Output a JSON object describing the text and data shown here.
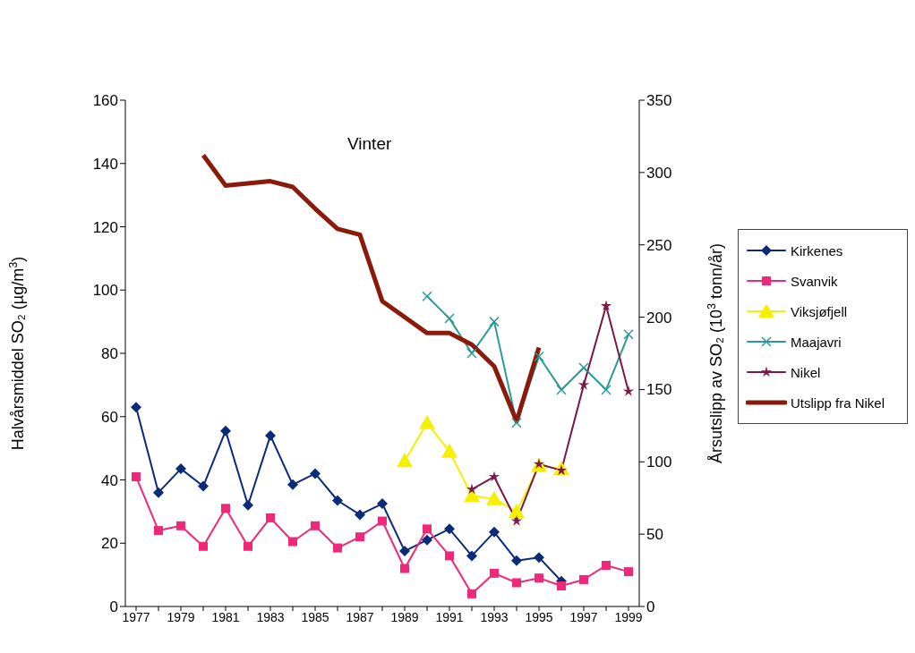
{
  "chart_data": {
    "type": "line",
    "title": "Vinter",
    "categories": [
      "1977",
      null,
      "1979",
      null,
      "1981",
      null,
      "1983",
      null,
      "1985",
      null,
      "1987",
      null,
      "1989",
      null,
      "1991",
      null,
      "1993",
      null,
      "1995",
      null,
      "1997",
      null,
      "1999"
    ],
    "ylabel": "Halvårsmiddel SO₂ (µg/m$^{3}$)",
    "y2label": "Årsutslipp av SO₂ (10$^{3}$ tonn/år)",
    "ylim": [
      0,
      160
    ],
    "yticks": [
      0,
      20,
      40,
      60,
      80,
      100,
      120,
      140,
      160
    ],
    "y2lim": [
      0,
      350
    ],
    "y2ticks": [
      0,
      50,
      100,
      150,
      200,
      250,
      300,
      350
    ],
    "grid": false,
    "legend": "right",
    "series": [
      {
        "name": "Kirkenes",
        "color": "#0a2a7a",
        "marker": "diamond",
        "values": [
          63,
          36,
          43.5,
          38,
          55.5,
          32,
          54,
          38.5,
          42,
          33.5,
          29,
          32.5,
          17.5,
          21,
          24.5,
          16,
          23.5,
          14.5,
          15.5,
          8,
          null,
          null,
          null
        ]
      },
      {
        "name": "Svanvik",
        "color": "#f0287a",
        "marker": "square",
        "values": [
          41,
          24,
          25.5,
          19,
          31,
          19,
          28,
          20.5,
          25.5,
          18.5,
          22,
          27,
          12,
          24.5,
          16,
          4,
          10.5,
          7.5,
          9,
          6.5,
          8.5,
          13,
          11
        ]
      },
      {
        "name": "Viksjøfjell",
        "color": "#f5f000",
        "marker": "triangle",
        "values": [
          null,
          null,
          null,
          null,
          null,
          null,
          null,
          null,
          null,
          null,
          null,
          null,
          46,
          58,
          49,
          35,
          34,
          30,
          44.5,
          43.5,
          null,
          null,
          null
        ]
      },
      {
        "name": "Maajavri",
        "color": "#2a9a9a",
        "marker": "cross",
        "values": [
          null,
          null,
          null,
          null,
          null,
          null,
          null,
          null,
          null,
          null,
          null,
          null,
          null,
          98,
          91,
          80,
          90,
          58,
          79,
          68.5,
          75.5,
          68.5,
          86
        ]
      },
      {
        "name": "Nikel",
        "color": "#7a1a4a",
        "marker": "star",
        "values": [
          null,
          null,
          null,
          null,
          null,
          null,
          null,
          null,
          null,
          null,
          null,
          null,
          null,
          null,
          null,
          37,
          41,
          27,
          45,
          43,
          70,
          95,
          68
        ]
      },
      {
        "name": "Utslipp fra Nikel",
        "color": "#8a1a0a",
        "marker": "none",
        "axis": "y2",
        "values": [
          null,
          null,
          null,
          312,
          291,
          292.5,
          294,
          290,
          275,
          261,
          257,
          211,
          200,
          189,
          189,
          181,
          166,
          128,
          179,
          null,
          null,
          null,
          null
        ]
      }
    ]
  }
}
